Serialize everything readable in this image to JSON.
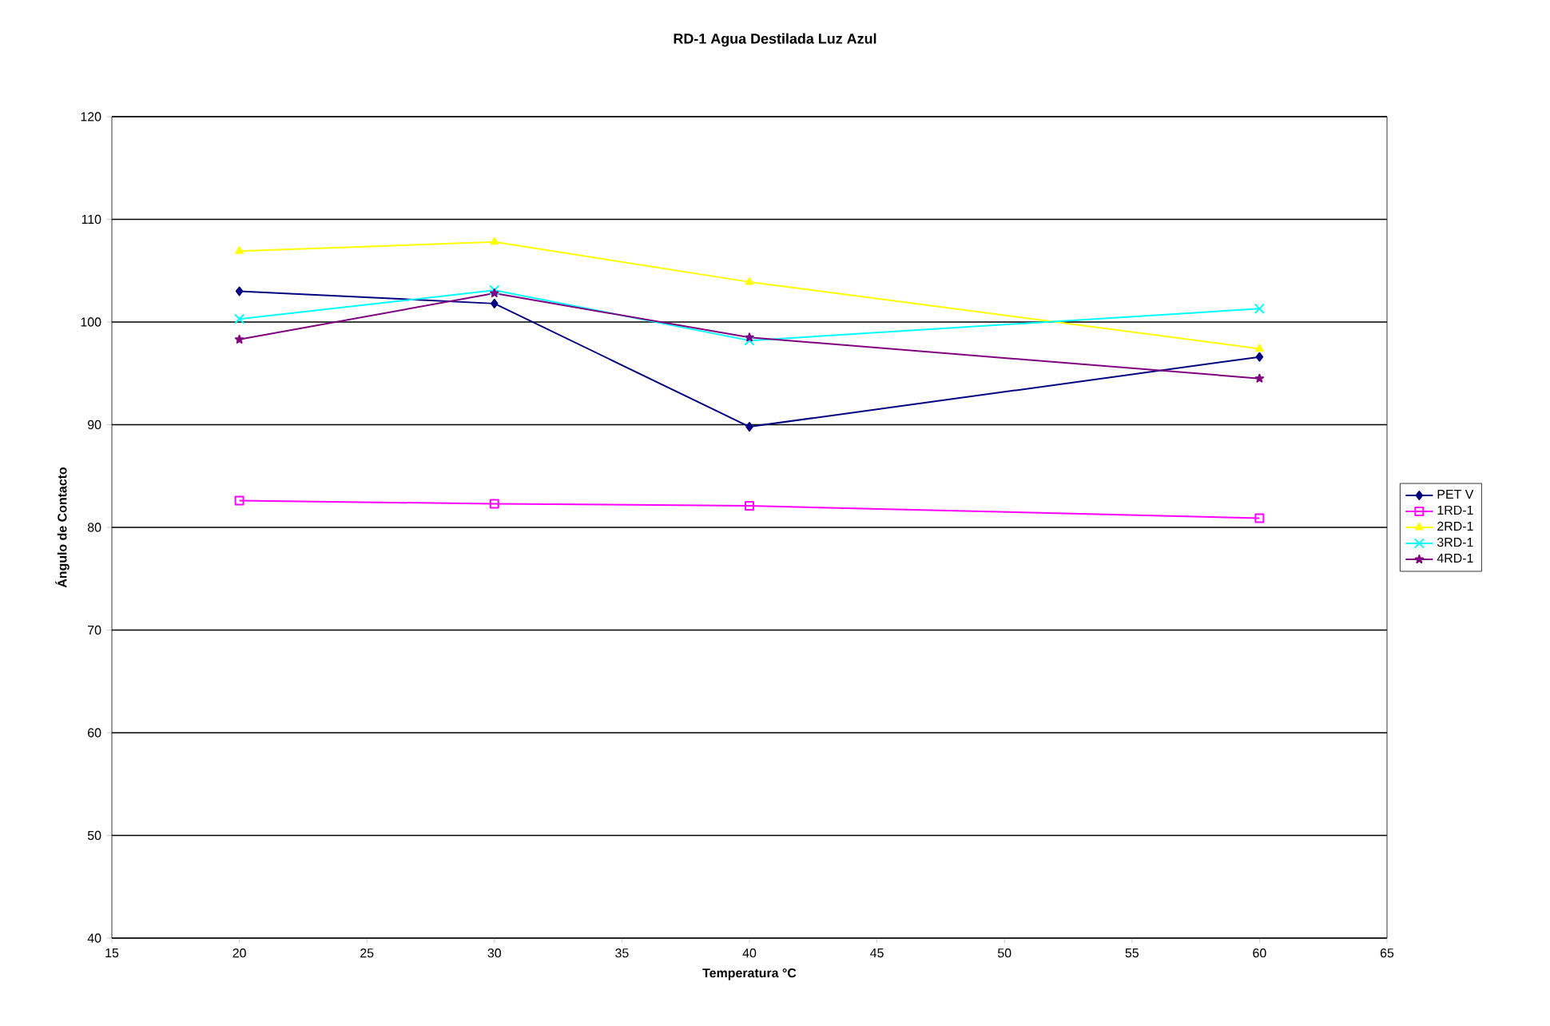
{
  "chart_data": {
    "type": "line",
    "title": "RD-1 Agua Destilada Luz Azul",
    "xlabel": "Temperatura °C",
    "ylabel": "Ángulo de Contacto",
    "x": [
      20,
      30,
      40,
      60
    ],
    "series": [
      {
        "name": "PET V",
        "color": "#000080",
        "marker": "diamond",
        "values": [
          103.0,
          101.8,
          89.8,
          96.6
        ]
      },
      {
        "name": "1RD-1",
        "color": "#ff00ff",
        "marker": "square",
        "values": [
          82.6,
          82.3,
          82.1,
          80.9
        ]
      },
      {
        "name": "2RD-1",
        "color": "#ffff00",
        "marker": "triangle",
        "values": [
          106.9,
          107.8,
          103.9,
          97.4
        ]
      },
      {
        "name": "3RD-1",
        "color": "#00ffff",
        "marker": "cross",
        "values": [
          100.3,
          103.1,
          98.2,
          101.3
        ]
      },
      {
        "name": "4RD-1",
        "color": "#800080",
        "marker": "star",
        "values": [
          98.3,
          102.8,
          98.5,
          94.5
        ]
      }
    ],
    "xlim": [
      15,
      65
    ],
    "xticks": [
      15,
      20,
      25,
      30,
      35,
      40,
      45,
      50,
      55,
      60,
      65
    ],
    "ylim": [
      40,
      120
    ],
    "yticks": [
      40,
      50,
      60,
      70,
      80,
      90,
      100,
      110,
      120
    ],
    "grid": "y",
    "legend": "right",
    "line_style": "solid"
  }
}
